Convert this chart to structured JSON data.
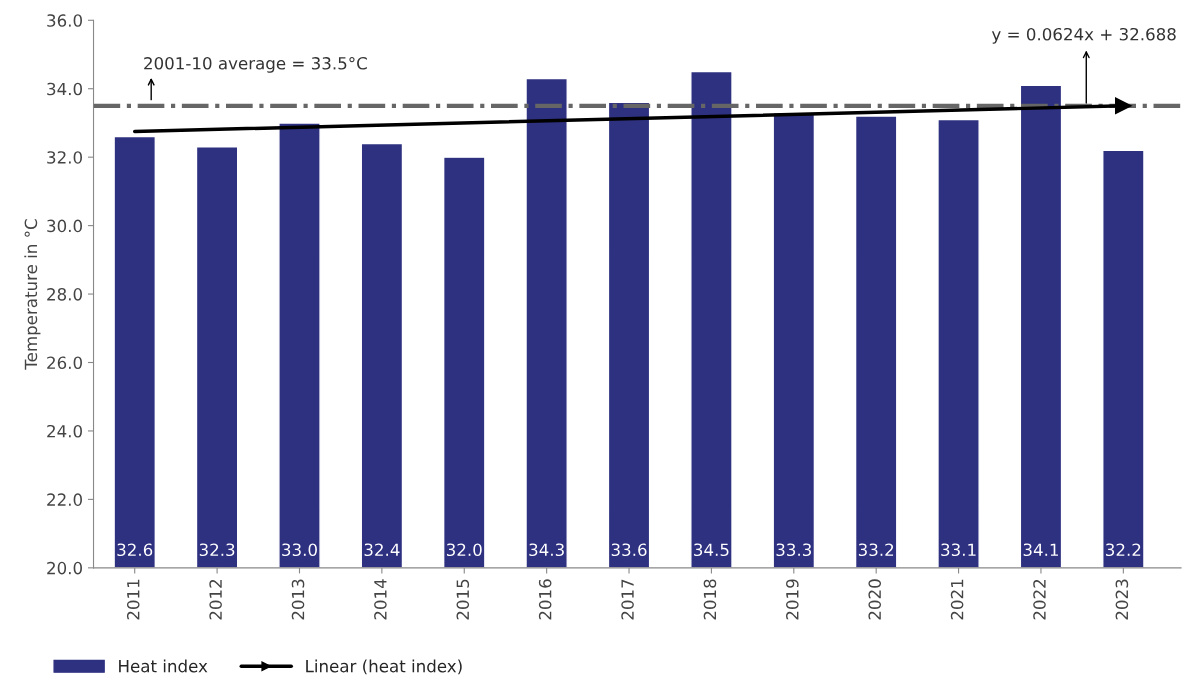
{
  "chart_data": {
    "type": "bar",
    "ylabel": "Temperature in °C",
    "categories": [
      "2011",
      "2012",
      "2013",
      "2014",
      "2015",
      "2016",
      "2017",
      "2018",
      "2019",
      "2020",
      "2021",
      "2022",
      "2023"
    ],
    "series": [
      {
        "name": "Heat index",
        "color": "#2e3080",
        "values": [
          32.6,
          32.3,
          33.0,
          32.4,
          32.0,
          34.3,
          33.6,
          34.5,
          33.3,
          33.2,
          33.1,
          34.1,
          32.2
        ],
        "value_labels": [
          "32.6",
          "32.3",
          "33.0",
          "32.4",
          "32.0",
          "34.3",
          "33.6",
          "34.5",
          "33.3",
          "33.2",
          "33.1",
          "34.1",
          "32.2"
        ]
      },
      {
        "name": "Linear (heat index)",
        "type": "line",
        "color": "#000000",
        "values": [
          32.75,
          null,
          null,
          null,
          null,
          null,
          null,
          null,
          null,
          null,
          null,
          null,
          33.5
        ]
      }
    ],
    "ylim": [
      20,
      36
    ],
    "yticks": [
      {
        "value": 20,
        "label": "20.0"
      },
      {
        "value": 22,
        "label": "22.0"
      },
      {
        "value": 24,
        "label": "24.0"
      },
      {
        "value": 26,
        "label": "26.0"
      },
      {
        "value": 28,
        "label": "28.0"
      },
      {
        "value": 30,
        "label": "30.0"
      },
      {
        "value": 32,
        "label": "32.0"
      },
      {
        "value": 34,
        "label": "34.0"
      },
      {
        "value": 36,
        "label": "36.0"
      }
    ],
    "ref_lines": [
      {
        "axis": "y",
        "value": 33.5,
        "label": "2001-10 average = 33.5°C",
        "color": "#666666",
        "line_style": "dashdot"
      }
    ],
    "annotations": [
      {
        "text": "y = 0.0624x + 32.688",
        "y": 33.5
      }
    ],
    "grid": false,
    "legend": "bottom left"
  }
}
